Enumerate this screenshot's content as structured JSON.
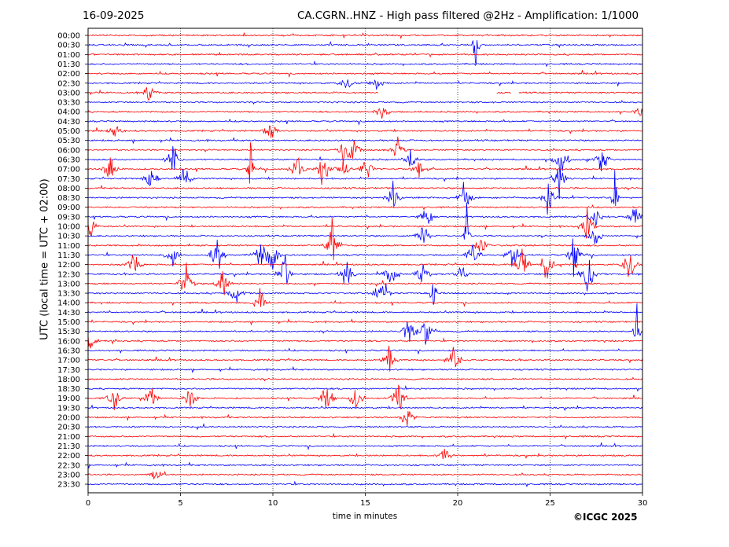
{
  "header": {
    "date": "16-09-2025",
    "title": "CA.CGRN..HNZ - High pass filtered @2Hz - Amplification: 1/1000"
  },
  "footer": {
    "copyright": "©ICGC 2025"
  },
  "colors": {
    "even_rows": "#ff0000",
    "odd_rows": "#0000ff",
    "grid": "#000000"
  },
  "chart_data": {
    "type": "line",
    "title": "CA.CGRN..HNZ - High pass filtered @2Hz - Amplification: 1/1000",
    "xlabel": "time in minutes",
    "ylabel": "UTC (local time = UTC + 02:00)",
    "xlim": [
      0,
      30
    ],
    "x_ticks": [
      "0",
      "5",
      "10",
      "15",
      "20",
      "25",
      "30"
    ],
    "grid": "vertical dotted lines at 5-minute intervals",
    "row_labels": [
      "00:00",
      "00:30",
      "01:00",
      "01:30",
      "02:00",
      "02:30",
      "03:00",
      "03:30",
      "04:00",
      "04:30",
      "05:00",
      "05:30",
      "06:00",
      "06:30",
      "07:00",
      "07:30",
      "08:00",
      "08:30",
      "09:00",
      "09:30",
      "10:00",
      "10:30",
      "11:00",
      "11:30",
      "12:00",
      "12:30",
      "13:00",
      "13:30",
      "14:00",
      "14:30",
      "15:00",
      "15:30",
      "16:00",
      "16:30",
      "17:00",
      "17:30",
      "18:00",
      "18:30",
      "19:00",
      "19:30",
      "20:00",
      "20:30",
      "21:00",
      "21:30",
      "22:00",
      "22:30",
      "23:00",
      "23:30"
    ],
    "row_color_pattern": [
      "red",
      "blue"
    ],
    "series_note": "helicorder trace per 30-minute row",
    "events": [
      {
        "row": "00:30",
        "minute": 21.0,
        "amplitude": 0.95
      },
      {
        "row": "02:30",
        "minute": 14.0,
        "amplitude": 0.2
      },
      {
        "row": "02:30",
        "minute": 15.6,
        "amplitude": 0.25
      },
      {
        "row": "03:00",
        "minute": 3.3,
        "amplitude": 0.25
      },
      {
        "row": "04:00",
        "minute": 15.9,
        "amplitude": 0.3
      },
      {
        "row": "04:00",
        "minute": 29.9,
        "amplitude": 0.2
      },
      {
        "row": "05:00",
        "minute": 1.5,
        "amplitude": 0.25
      },
      {
        "row": "05:00",
        "minute": 9.9,
        "amplitude": 0.35
      },
      {
        "row": "06:00",
        "minute": 13.9,
        "amplitude": 0.5
      },
      {
        "row": "06:00",
        "minute": 14.4,
        "amplitude": 0.4
      },
      {
        "row": "06:00",
        "minute": 16.7,
        "amplitude": 0.4
      },
      {
        "row": "06:30",
        "minute": 4.6,
        "amplitude": 0.6
      },
      {
        "row": "06:30",
        "minute": 17.4,
        "amplitude": 0.4
      },
      {
        "row": "06:30",
        "minute": 25.6,
        "amplitude": 0.6
      },
      {
        "row": "06:30",
        "minute": 27.8,
        "amplitude": 0.5
      },
      {
        "row": "07:00",
        "minute": 1.2,
        "amplitude": 0.4
      },
      {
        "row": "07:00",
        "minute": 8.8,
        "amplitude": 1.0
      },
      {
        "row": "07:00",
        "minute": 11.3,
        "amplitude": 0.5
      },
      {
        "row": "07:00",
        "minute": 12.7,
        "amplitude": 0.6
      },
      {
        "row": "07:00",
        "minute": 13.8,
        "amplitude": 0.35
      },
      {
        "row": "07:00",
        "minute": 15.1,
        "amplitude": 0.55
      },
      {
        "row": "07:00",
        "minute": 17.9,
        "amplitude": 0.4
      },
      {
        "row": "07:30",
        "minute": 3.4,
        "amplitude": 0.45
      },
      {
        "row": "07:30",
        "minute": 5.2,
        "amplitude": 0.5
      },
      {
        "row": "07:30",
        "minute": 25.5,
        "amplitude": 0.55
      },
      {
        "row": "08:30",
        "minute": 16.5,
        "amplitude": 0.5
      },
      {
        "row": "08:30",
        "minute": 20.4,
        "amplitude": 0.55
      },
      {
        "row": "08:30",
        "minute": 24.9,
        "amplitude": 0.5
      },
      {
        "row": "08:30",
        "minute": 28.5,
        "amplitude": 0.9
      },
      {
        "row": "09:30",
        "minute": 18.3,
        "amplitude": 0.4
      },
      {
        "row": "09:30",
        "minute": 27.4,
        "amplitude": 0.35
      },
      {
        "row": "09:30",
        "minute": 29.6,
        "amplitude": 0.4
      },
      {
        "row": "10:00",
        "minute": 0.1,
        "amplitude": 0.4
      },
      {
        "row": "10:00",
        "minute": 27.0,
        "amplitude": 0.55
      },
      {
        "row": "10:30",
        "minute": 18.1,
        "amplitude": 0.5
      },
      {
        "row": "10:30",
        "minute": 20.5,
        "amplitude": 1.0
      },
      {
        "row": "10:30",
        "minute": 27.4,
        "amplitude": 0.45
      },
      {
        "row": "11:00",
        "minute": 13.2,
        "amplitude": 0.7
      },
      {
        "row": "11:00",
        "minute": 21.3,
        "amplitude": 0.4
      },
      {
        "row": "11:30",
        "minute": 4.6,
        "amplitude": 0.45
      },
      {
        "row": "11:30",
        "minute": 7.0,
        "amplitude": 0.65
      },
      {
        "row": "11:30",
        "minute": 9.3,
        "amplitude": 0.55
      },
      {
        "row": "11:30",
        "minute": 10.0,
        "amplitude": 0.6
      },
      {
        "row": "11:30",
        "minute": 20.8,
        "amplitude": 0.45
      },
      {
        "row": "11:30",
        "minute": 23.0,
        "amplitude": 0.45
      },
      {
        "row": "11:30",
        "minute": 26.3,
        "amplitude": 0.6
      },
      {
        "row": "12:00",
        "minute": 2.5,
        "amplitude": 0.5
      },
      {
        "row": "12:00",
        "minute": 23.5,
        "amplitude": 0.55
      },
      {
        "row": "12:00",
        "minute": 24.8,
        "amplitude": 0.6
      },
      {
        "row": "12:00",
        "minute": 29.3,
        "amplitude": 0.55
      },
      {
        "row": "12:30",
        "minute": 10.6,
        "amplitude": 0.7
      },
      {
        "row": "12:30",
        "minute": 14.0,
        "amplitude": 0.5
      },
      {
        "row": "12:30",
        "minute": 16.4,
        "amplitude": 0.55
      },
      {
        "row": "12:30",
        "minute": 18.1,
        "amplitude": 0.35
      },
      {
        "row": "12:30",
        "minute": 20.2,
        "amplitude": 0.35
      },
      {
        "row": "12:30",
        "minute": 27.0,
        "amplitude": 0.8
      },
      {
        "row": "13:00",
        "minute": 5.3,
        "amplitude": 0.7
      },
      {
        "row": "13:00",
        "minute": 7.3,
        "amplitude": 0.55
      },
      {
        "row": "13:30",
        "minute": 8.0,
        "amplitude": 0.4
      },
      {
        "row": "13:30",
        "minute": 15.9,
        "amplitude": 0.8
      },
      {
        "row": "13:30",
        "minute": 18.7,
        "amplitude": 0.9
      },
      {
        "row": "14:00",
        "minute": 9.3,
        "amplitude": 0.4
      },
      {
        "row": "15:30",
        "minute": 17.3,
        "amplitude": 0.55
      },
      {
        "row": "15:30",
        "minute": 18.3,
        "amplitude": 0.45
      },
      {
        "row": "15:30",
        "minute": 29.7,
        "amplitude": 1.0
      },
      {
        "row": "16:00",
        "minute": 0.1,
        "amplitude": 0.35
      },
      {
        "row": "17:00",
        "minute": 16.3,
        "amplitude": 0.4
      },
      {
        "row": "17:00",
        "minute": 19.8,
        "amplitude": 0.45
      },
      {
        "row": "19:00",
        "minute": 1.4,
        "amplitude": 0.35
      },
      {
        "row": "19:00",
        "minute": 3.4,
        "amplitude": 0.4
      },
      {
        "row": "19:00",
        "minute": 5.5,
        "amplitude": 0.35
      },
      {
        "row": "19:00",
        "minute": 12.9,
        "amplitude": 0.45
      },
      {
        "row": "19:00",
        "minute": 14.5,
        "amplitude": 0.4
      },
      {
        "row": "19:00",
        "minute": 16.8,
        "amplitude": 0.65
      },
      {
        "row": "20:00",
        "minute": 17.3,
        "amplitude": 0.3
      },
      {
        "row": "22:00",
        "minute": 19.3,
        "amplitude": 0.35
      },
      {
        "row": "23:00",
        "minute": 3.6,
        "amplitude": 0.2
      }
    ],
    "gaps": [
      {
        "row": "03:00",
        "from": 15.7,
        "to": 22.1
      },
      {
        "row": "03:00",
        "from": 22.9,
        "to": 23.3
      }
    ]
  }
}
